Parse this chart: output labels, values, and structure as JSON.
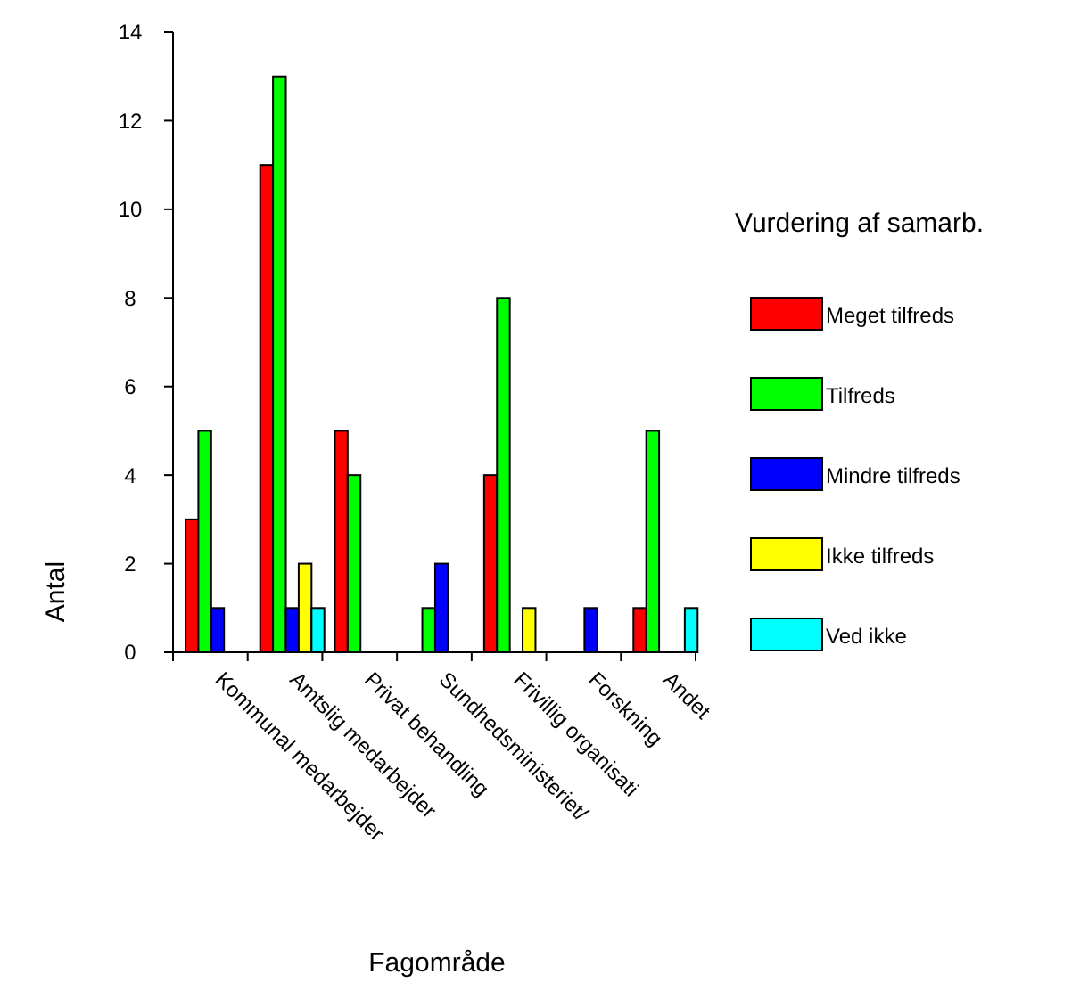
{
  "chart_data": {
    "type": "bar",
    "xlabel": "Fagområde",
    "ylabel": "Antal",
    "legend_title": "Vurdering af samarb.",
    "legend": "right",
    "categories": [
      "Kommunal medarbejder",
      "Amtslig medarbejder",
      "Privat behandling",
      "Sundhedsministeriet/",
      "Frivillig organisati",
      "Forskning",
      "Andet"
    ],
    "series": [
      {
        "name": "Meget tilfreds",
        "color": "#ff0000",
        "values": [
          3,
          11,
          5,
          0,
          4,
          0,
          1
        ]
      },
      {
        "name": "Tilfreds",
        "color": "#00ff00",
        "values": [
          5,
          13,
          4,
          1,
          8,
          0,
          5
        ]
      },
      {
        "name": "Mindre tilfreds",
        "color": "#0000ff",
        "values": [
          1,
          1,
          0,
          2,
          0,
          1,
          0
        ]
      },
      {
        "name": "Ikke tilfreds",
        "color": "#ffff00",
        "values": [
          0,
          2,
          0,
          0,
          1,
          0,
          0
        ]
      },
      {
        "name": "Ved ikke",
        "color": "#00ffff",
        "values": [
          0,
          1,
          0,
          0,
          0,
          0,
          1
        ]
      }
    ],
    "ylim": [
      0,
      14
    ],
    "yticks": [
      0,
      2,
      4,
      6,
      8,
      10,
      12,
      14
    ],
    "grid": false
  }
}
